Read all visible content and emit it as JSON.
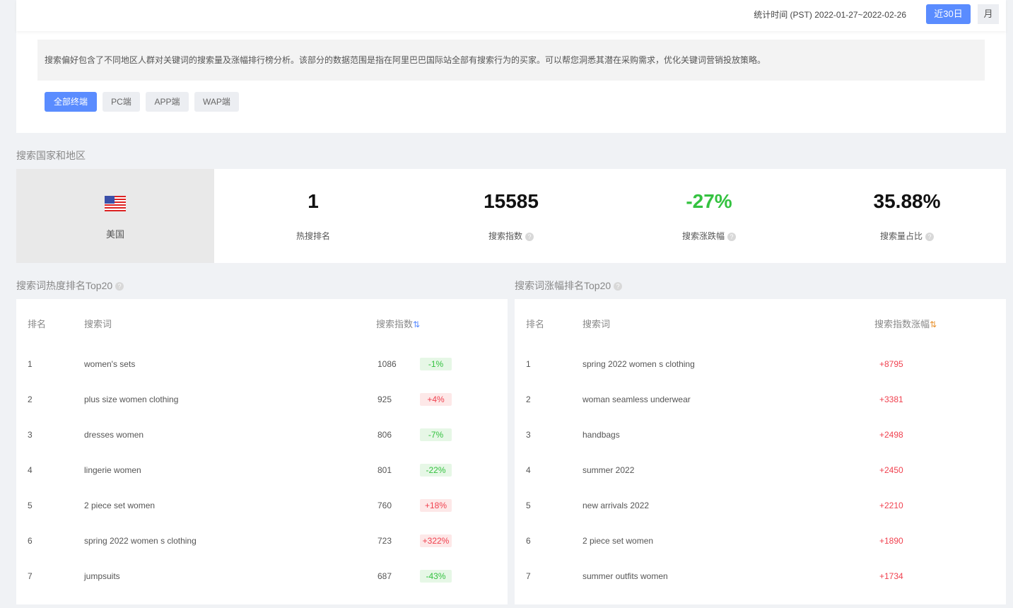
{
  "header": {
    "stat_time": "统计时间 (PST) 2022-01-27~2022-02-26",
    "btn_30d": "近30日",
    "btn_month": "月"
  },
  "description": "搜索偏好包含了不同地区人群对关键词的搜索量及涨幅排行榜分析。该部分的数据范围是指在阿里巴巴国际站全部有搜索行为的买家。可以帮您洞悉其潜在采购需求，优化关键词营销投放策略。",
  "terminals": [
    "全部终端",
    "PC端",
    "APP端",
    "WAP端"
  ],
  "active_terminal": "全部终端",
  "region_title": "搜索国家和地区",
  "country": {
    "name": "美国",
    "flag": "us-flag"
  },
  "metrics": [
    {
      "value": "1",
      "label": "热搜排名"
    },
    {
      "value": "15585",
      "label": "搜索指数",
      "help": "?"
    },
    {
      "value": "-27%",
      "label": "搜索涨跌幅",
      "help": "?",
      "color": "#34c240"
    },
    {
      "value": "35.88%",
      "label": "搜索量占比",
      "help": "?"
    }
  ],
  "hot": {
    "title": "搜索词热度排名Top20",
    "headers": [
      "排名",
      "搜索词",
      "搜索指数"
    ],
    "rows": [
      {
        "rank": "1",
        "term": "women's sets",
        "index": "1086",
        "change": "-1%",
        "dir": "down"
      },
      {
        "rank": "2",
        "term": "plus size women clothing",
        "index": "925",
        "change": "+4%",
        "dir": "up"
      },
      {
        "rank": "3",
        "term": "dresses women",
        "index": "806",
        "change": "-7%",
        "dir": "down"
      },
      {
        "rank": "4",
        "term": "lingerie women",
        "index": "801",
        "change": "-22%",
        "dir": "down"
      },
      {
        "rank": "5",
        "term": "2 piece set women",
        "index": "760",
        "change": "+18%",
        "dir": "up"
      },
      {
        "rank": "6",
        "term": "spring 2022 women s clothing",
        "index": "723",
        "change": "+322%",
        "dir": "up"
      },
      {
        "rank": "7",
        "term": "jumpsuits",
        "index": "687",
        "change": "-43%",
        "dir": "down"
      }
    ]
  },
  "rise": {
    "title": "搜索词涨幅排名Top20",
    "headers": [
      "排名",
      "搜索词",
      "搜索指数涨幅"
    ],
    "rows": [
      {
        "rank": "1",
        "term": "spring 2022 women s clothing",
        "change": "+8795"
      },
      {
        "rank": "2",
        "term": "woman seamless underwear",
        "change": "+3381"
      },
      {
        "rank": "3",
        "term": "handbags",
        "change": "+2498"
      },
      {
        "rank": "4",
        "term": "summer 2022",
        "change": "+2450"
      },
      {
        "rank": "5",
        "term": "new arrivals 2022",
        "change": "+2210"
      },
      {
        "rank": "6",
        "term": "2 piece set women",
        "change": "+1890"
      },
      {
        "rank": "7",
        "term": "summer outfits women",
        "change": "+1734"
      }
    ]
  }
}
